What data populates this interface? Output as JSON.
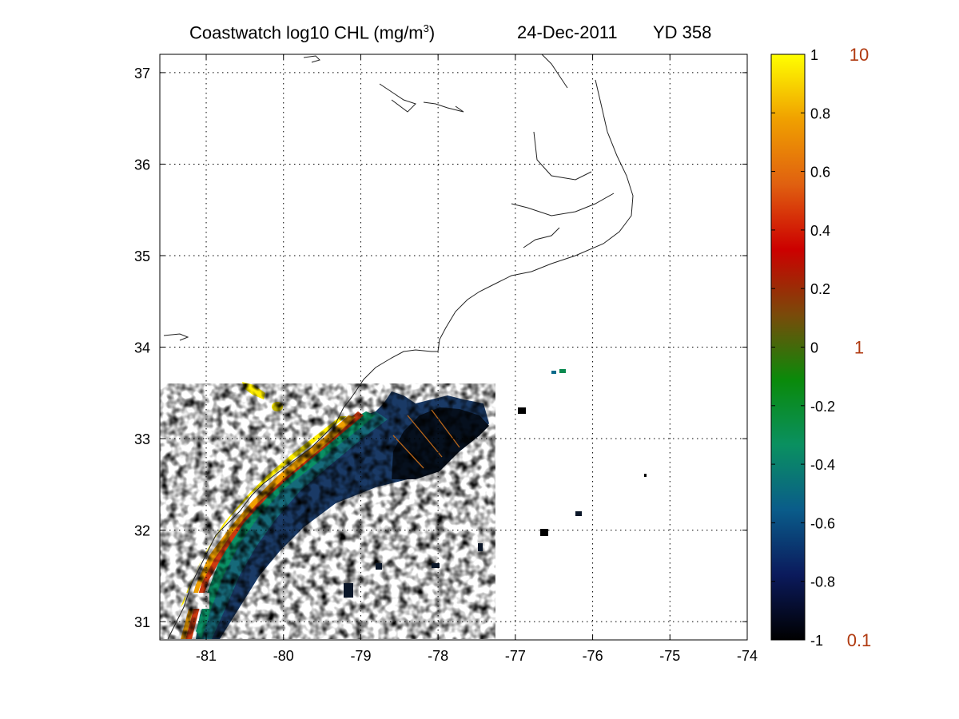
{
  "title": {
    "main_prefix": "Coastwatch  log10  CHL (mg/m",
    "main_sup": "3",
    "main_suffix": ")",
    "date": "24-Dec-2011",
    "yearday": "YD 358"
  },
  "map": {
    "lon_range": [
      -81.6,
      -74
    ],
    "lat_range": [
      30.8,
      37.2
    ],
    "grid": "dotted",
    "x_ticks": [
      "-81",
      "-80",
      "-79",
      "-78",
      "-77",
      "-76",
      "-75",
      "-74"
    ],
    "y_ticks": [
      "31",
      "32",
      "33",
      "34",
      "35",
      "36",
      "37"
    ]
  },
  "colorbar": {
    "variable": "log10 chlorophyll",
    "range": [
      -1,
      1
    ],
    "colors": [
      "#000000",
      "#0b1a5c",
      "#0a5c8a",
      "#0a9060",
      "#0a8a0a",
      "#7a4a0a",
      "#cc0000",
      "#e06010",
      "#f0a000",
      "#ffff00"
    ],
    "tick_labels": [
      "1",
      "0.8",
      "0.6",
      "0.4",
      "0.2",
      "0",
      "-0.2",
      "-0.4",
      "-0.6",
      "-0.8",
      "-1"
    ],
    "real_labels": [
      "10",
      "1",
      "0.1"
    ]
  },
  "chart_data": {
    "type": "heatmap",
    "title": "Coastwatch  log10  CHL (mg/m3)   24-Dec-2011   YD 358",
    "xlabel": "",
    "ylabel": "",
    "xlim": [
      -81.6,
      -74
    ],
    "ylim": [
      30.8,
      37.2
    ],
    "x_ticks": [
      -81,
      -80,
      -79,
      -78,
      -77,
      -76,
      -75,
      -74
    ],
    "y_ticks": [
      31,
      32,
      33,
      34,
      35,
      36,
      37
    ],
    "colorbar_range": [
      -1,
      1
    ],
    "colorbar_ticks": [
      -1,
      -0.8,
      -0.6,
      -0.4,
      -0.2,
      0,
      0.2,
      0.4,
      0.6,
      0.8,
      1
    ],
    "colorbar_real_values": [
      0.1,
      1,
      10
    ],
    "grid": true
  }
}
